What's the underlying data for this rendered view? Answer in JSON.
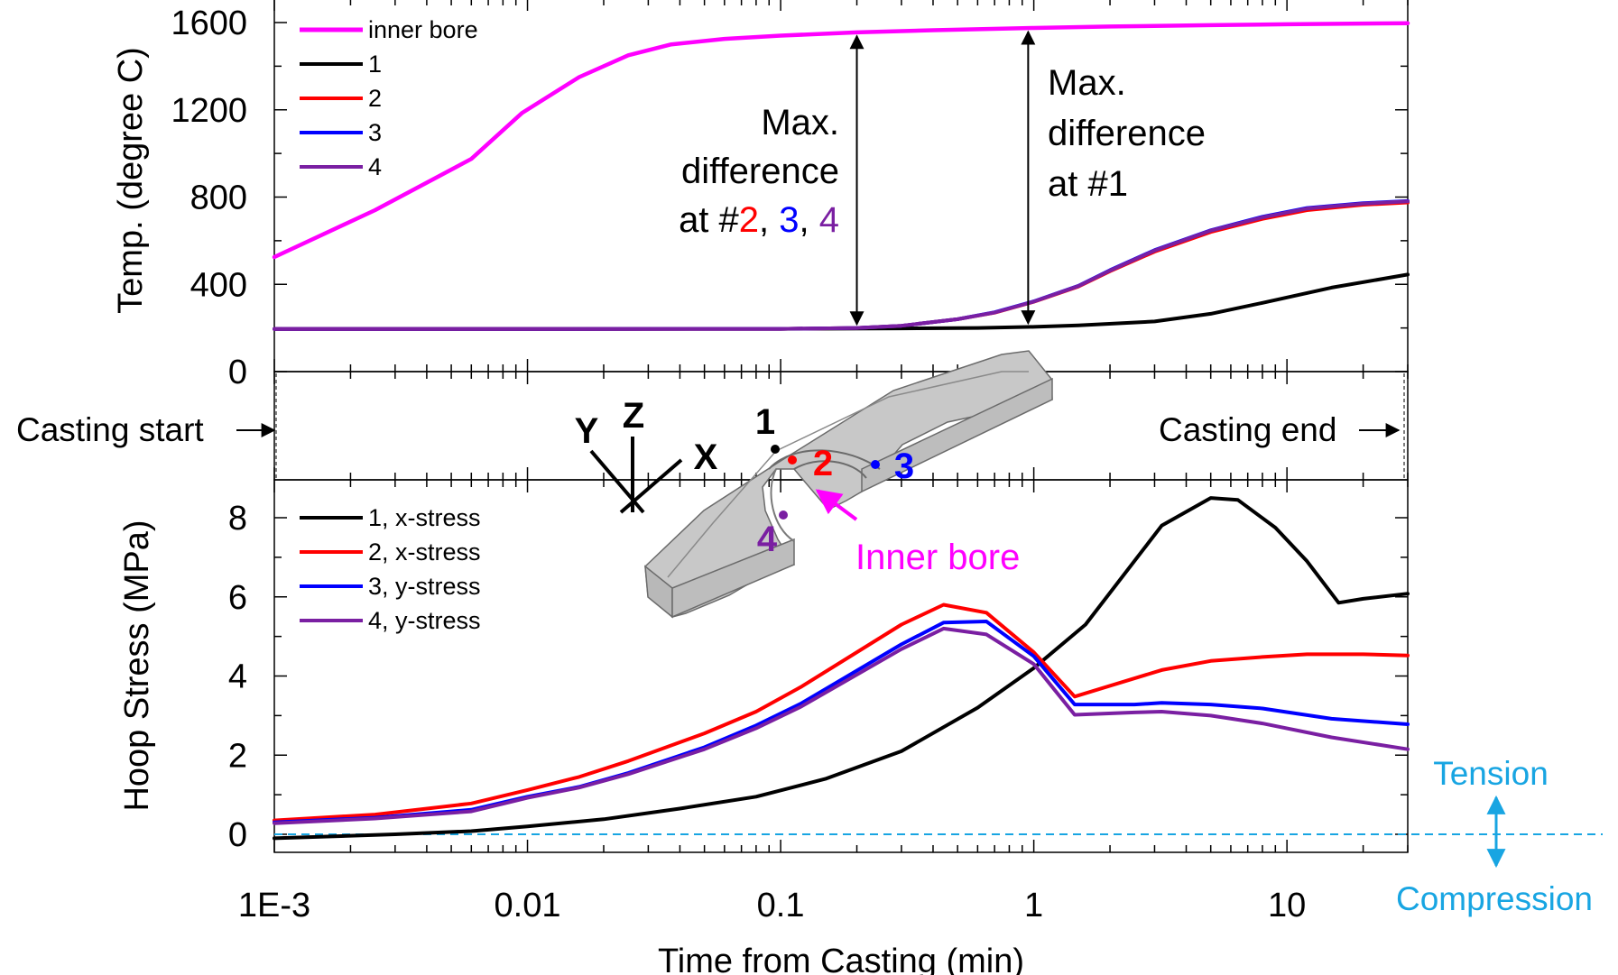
{
  "colors": {
    "inner_bore": "#ff00ff",
    "p1": "#000000",
    "p2": "#ff0000",
    "p3": "#0000ff",
    "p4": "#7a1fa2",
    "tension": "#18a5e2",
    "part": "#c8c8c8"
  },
  "x_axis": {
    "scale": "log",
    "range_min": [
      0.001,
      30
    ],
    "label": "Time from Casting (min)",
    "ticks": [
      0.001,
      0.01,
      0.1,
      1,
      10
    ],
    "tick_labels": [
      "1E-3",
      "0.01",
      "0.1",
      "1",
      "10"
    ]
  },
  "annotations": {
    "casting_start": "Casting start",
    "casting_end": "Casting end",
    "maxdiff_left": {
      "line1": "Max.",
      "line2": "difference",
      "prefix": "at #",
      "n2": "2",
      "sep1": ", ",
      "n3": "3",
      "sep2": ", ",
      "n4": "4"
    },
    "maxdiff_right": {
      "line1": "Max.",
      "line2": "difference",
      "line3": "at #1"
    },
    "maxdiff_left_x": 0.2,
    "maxdiff_right_x": 0.95,
    "tension": "Tension",
    "compression": "Compression"
  },
  "inset": {
    "axis_y": "Y",
    "axis_z": "Z",
    "axis_x": "X",
    "p1": "1",
    "p2": "2",
    "p3": "3",
    "p4": "4",
    "inner_bore": "Inner bore"
  },
  "chart_data": [
    {
      "type": "line",
      "title": "",
      "xlabel": "Time from Casting (min)",
      "ylabel": "Temp. (degree C)",
      "xscale": "log",
      "xlim": [
        0.001,
        30
      ],
      "ylim": [
        0,
        1600
      ],
      "yticks": [
        0,
        400,
        800,
        1200,
        1600
      ],
      "legend_position": "top-left",
      "series": [
        {
          "name": "inner bore",
          "color_key": "inner_bore",
          "x": [
            0.001,
            0.0025,
            0.006,
            0.0095,
            0.016,
            0.025,
            0.037,
            0.06,
            0.1,
            0.2,
            0.4,
            1,
            2,
            5,
            10,
            30
          ],
          "y": [
            525,
            740,
            975,
            1185,
            1350,
            1450,
            1500,
            1525,
            1540,
            1555,
            1565,
            1575,
            1582,
            1588,
            1592,
            1597
          ]
        },
        {
          "name": "1",
          "color_key": "p1",
          "x": [
            0.001,
            0.01,
            0.1,
            0.3,
            0.6,
            1,
            1.5,
            3,
            5,
            8,
            15,
            30
          ],
          "y": [
            195,
            195,
            196,
            198,
            200,
            205,
            212,
            230,
            265,
            315,
            385,
            445
          ]
        },
        {
          "name": "2",
          "color_key": "p2",
          "x": [
            0.001,
            0.01,
            0.1,
            0.2,
            0.3,
            0.5,
            0.7,
            1,
            1.5,
            2,
            3,
            5,
            8,
            12,
            20,
            30
          ],
          "y": [
            195,
            195,
            196,
            200,
            210,
            240,
            270,
            320,
            390,
            460,
            550,
            640,
            700,
            740,
            765,
            775
          ]
        },
        {
          "name": "3",
          "color_key": "p3",
          "x": [
            0.001,
            0.01,
            0.1,
            0.2,
            0.3,
            0.5,
            0.7,
            1,
            1.5,
            2,
            3,
            5,
            8,
            12,
            20,
            30
          ],
          "y": [
            195,
            195,
            196,
            200,
            210,
            240,
            272,
            322,
            393,
            465,
            557,
            648,
            710,
            750,
            772,
            782
          ]
        },
        {
          "name": "4",
          "color_key": "p4",
          "x": [
            0.001,
            0.01,
            0.1,
            0.2,
            0.3,
            0.5,
            0.7,
            1,
            1.5,
            2,
            3,
            5,
            8,
            12,
            20,
            30
          ],
          "y": [
            195,
            195,
            196,
            200,
            210,
            240,
            271,
            321,
            392,
            463,
            555,
            646,
            707,
            747,
            770,
            780
          ]
        }
      ]
    },
    {
      "type": "line",
      "title": "",
      "xlabel": "Time from Casting (min)",
      "ylabel": "Hoop Stress (MPa)",
      "xscale": "log",
      "xlim": [
        0.001,
        30
      ],
      "ylim": [
        -0.5,
        9
      ],
      "yticks": [
        0,
        2,
        4,
        6,
        8
      ],
      "reference_line_y": 0,
      "legend_position": "top-left",
      "series": [
        {
          "name": "1, x-stress",
          "color_key": "p1",
          "x": [
            0.001,
            0.003,
            0.006,
            0.01,
            0.02,
            0.04,
            0.08,
            0.15,
            0.3,
            0.6,
            1,
            1.6,
            3.2,
            5,
            6.4,
            9,
            12,
            16,
            20,
            30
          ],
          "y": [
            -0.1,
            0,
            0.08,
            0.2,
            0.38,
            0.65,
            0.95,
            1.4,
            2.1,
            3.2,
            4.2,
            5.3,
            7.8,
            8.5,
            8.45,
            7.75,
            6.9,
            5.85,
            5.95,
            6.08
          ]
        },
        {
          "name": "2, x-stress",
          "color_key": "p2",
          "x": [
            0.001,
            0.0025,
            0.006,
            0.01,
            0.016,
            0.025,
            0.05,
            0.08,
            0.12,
            0.3,
            0.44,
            0.65,
            1,
            1.45,
            3.2,
            5,
            8,
            12,
            20,
            30
          ],
          "y": [
            0.35,
            0.5,
            0.78,
            1.12,
            1.45,
            1.85,
            2.55,
            3.1,
            3.72,
            5.3,
            5.8,
            5.6,
            4.6,
            3.48,
            4.15,
            4.38,
            4.48,
            4.55,
            4.55,
            4.52
          ]
        },
        {
          "name": "3, y-stress",
          "color_key": "p3",
          "x": [
            0.001,
            0.0025,
            0.006,
            0.01,
            0.016,
            0.025,
            0.05,
            0.08,
            0.12,
            0.3,
            0.44,
            0.65,
            1,
            1.45,
            2.5,
            3.2,
            5,
            8,
            15,
            30
          ],
          "y": [
            0.3,
            0.42,
            0.62,
            0.95,
            1.2,
            1.55,
            2.2,
            2.75,
            3.3,
            4.8,
            5.35,
            5.38,
            4.5,
            3.28,
            3.28,
            3.32,
            3.28,
            3.18,
            2.92,
            2.78
          ]
        },
        {
          "name": "4, y-stress",
          "color_key": "p4",
          "x": [
            0.001,
            0.0025,
            0.006,
            0.01,
            0.016,
            0.025,
            0.05,
            0.08,
            0.12,
            0.3,
            0.44,
            0.65,
            1,
            1.45,
            2.5,
            3.2,
            5,
            8,
            15,
            30
          ],
          "y": [
            0.28,
            0.4,
            0.58,
            0.92,
            1.18,
            1.52,
            2.15,
            2.68,
            3.22,
            4.68,
            5.2,
            5.05,
            4.3,
            3.02,
            3.08,
            3.1,
            3.0,
            2.8,
            2.45,
            2.15
          ]
        }
      ]
    }
  ]
}
